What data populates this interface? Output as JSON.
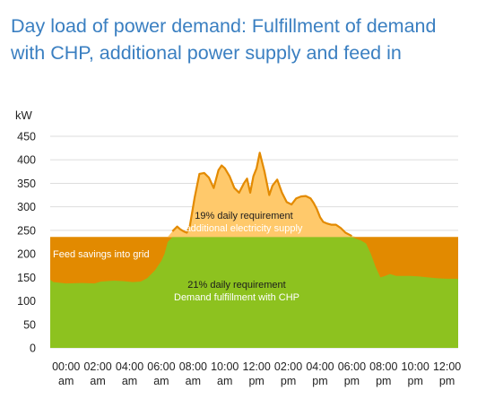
{
  "title": "Day load of power demand: Fulfillment of demand with CHP, additional power supply and feed in",
  "chart_data": {
    "type": "area",
    "ylabel": "kW",
    "ylim": [
      0,
      450
    ],
    "yticks": [
      0,
      50,
      100,
      150,
      200,
      250,
      300,
      350,
      400,
      450
    ],
    "xlim": [
      -1,
      24.7
    ],
    "xticks": [
      {
        "x": 0,
        "line1": "00:00",
        "line2": "am"
      },
      {
        "x": 2,
        "line1": "02:00",
        "line2": "am"
      },
      {
        "x": 4,
        "line1": "04:00",
        "line2": "am"
      },
      {
        "x": 6,
        "line1": "06:00",
        "line2": "am"
      },
      {
        "x": 8,
        "line1": "08:00",
        "line2": "am"
      },
      {
        "x": 10,
        "line1": "10:00",
        "line2": "am"
      },
      {
        "x": 12,
        "line1": "12:00",
        "line2": "pm"
      },
      {
        "x": 14,
        "line1": "02:00",
        "line2": "pm"
      },
      {
        "x": 16,
        "line1": "04:00",
        "line2": "pm"
      },
      {
        "x": 18,
        "line1": "06:00",
        "line2": "pm"
      },
      {
        "x": 20,
        "line1": "08:00",
        "line2": "pm"
      },
      {
        "x": 22,
        "line1": "10:00",
        "line2": "pm"
      },
      {
        "x": 24,
        "line1": "12:00",
        "line2": "pm"
      }
    ],
    "chp_capacity_kw": 236,
    "colors": {
      "chp": "#8dc21f",
      "feed": "#e28a00",
      "supply": "#ffc96b",
      "grid": "#dddddd"
    },
    "demand_curve": {
      "x": [
        -1,
        -0.8,
        0,
        1,
        1.8,
        2.2,
        3,
        3.6,
        4.2,
        4.7,
        5.1,
        5.6,
        6,
        6.2,
        6.4,
        6.7,
        7,
        7.2,
        7.4,
        7.6,
        7.8,
        8.1,
        8.4,
        8.7,
        9,
        9.3,
        9.6,
        9.8,
        10,
        10.3,
        10.6,
        10.9,
        11.2,
        11.4,
        11.6,
        11.8,
        12,
        12.2,
        12.5,
        12.8,
        13,
        13.3,
        13.6,
        13.9,
        14.2,
        14.5,
        14.8,
        15.1,
        15.4,
        15.6,
        15.8,
        16,
        16.2,
        16.4,
        16.7,
        17,
        17.3,
        17.6,
        18,
        18.3,
        18.6,
        18.9,
        19.2,
        19.5,
        19.8,
        20.1,
        20.4,
        20.8,
        21.2,
        21.7,
        22.2,
        22.8,
        23.4,
        24,
        24.7
      ],
      "y": [
        145,
        140,
        137,
        138,
        137,
        141,
        143,
        142,
        140,
        141,
        148,
        165,
        185,
        200,
        225,
        248,
        258,
        252,
        248,
        245,
        260,
        320,
        370,
        372,
        362,
        340,
        378,
        388,
        382,
        365,
        340,
        330,
        350,
        360,
        330,
        365,
        382,
        415,
        375,
        325,
        345,
        358,
        330,
        310,
        305,
        318,
        322,
        323,
        318,
        308,
        295,
        278,
        268,
        265,
        262,
        262,
        255,
        245,
        238,
        232,
        228,
        222,
        200,
        172,
        150,
        153,
        157,
        153,
        153,
        153,
        152,
        150,
        148,
        147,
        147
      ]
    },
    "annotations": {
      "supply_pct": "19% daily requirement",
      "supply_desc": "additional electricity supply",
      "feed": "Feed savings into grid",
      "chp_pct": "21% daily requirement",
      "chp_desc": "Demand fulfillment with CHP"
    }
  }
}
